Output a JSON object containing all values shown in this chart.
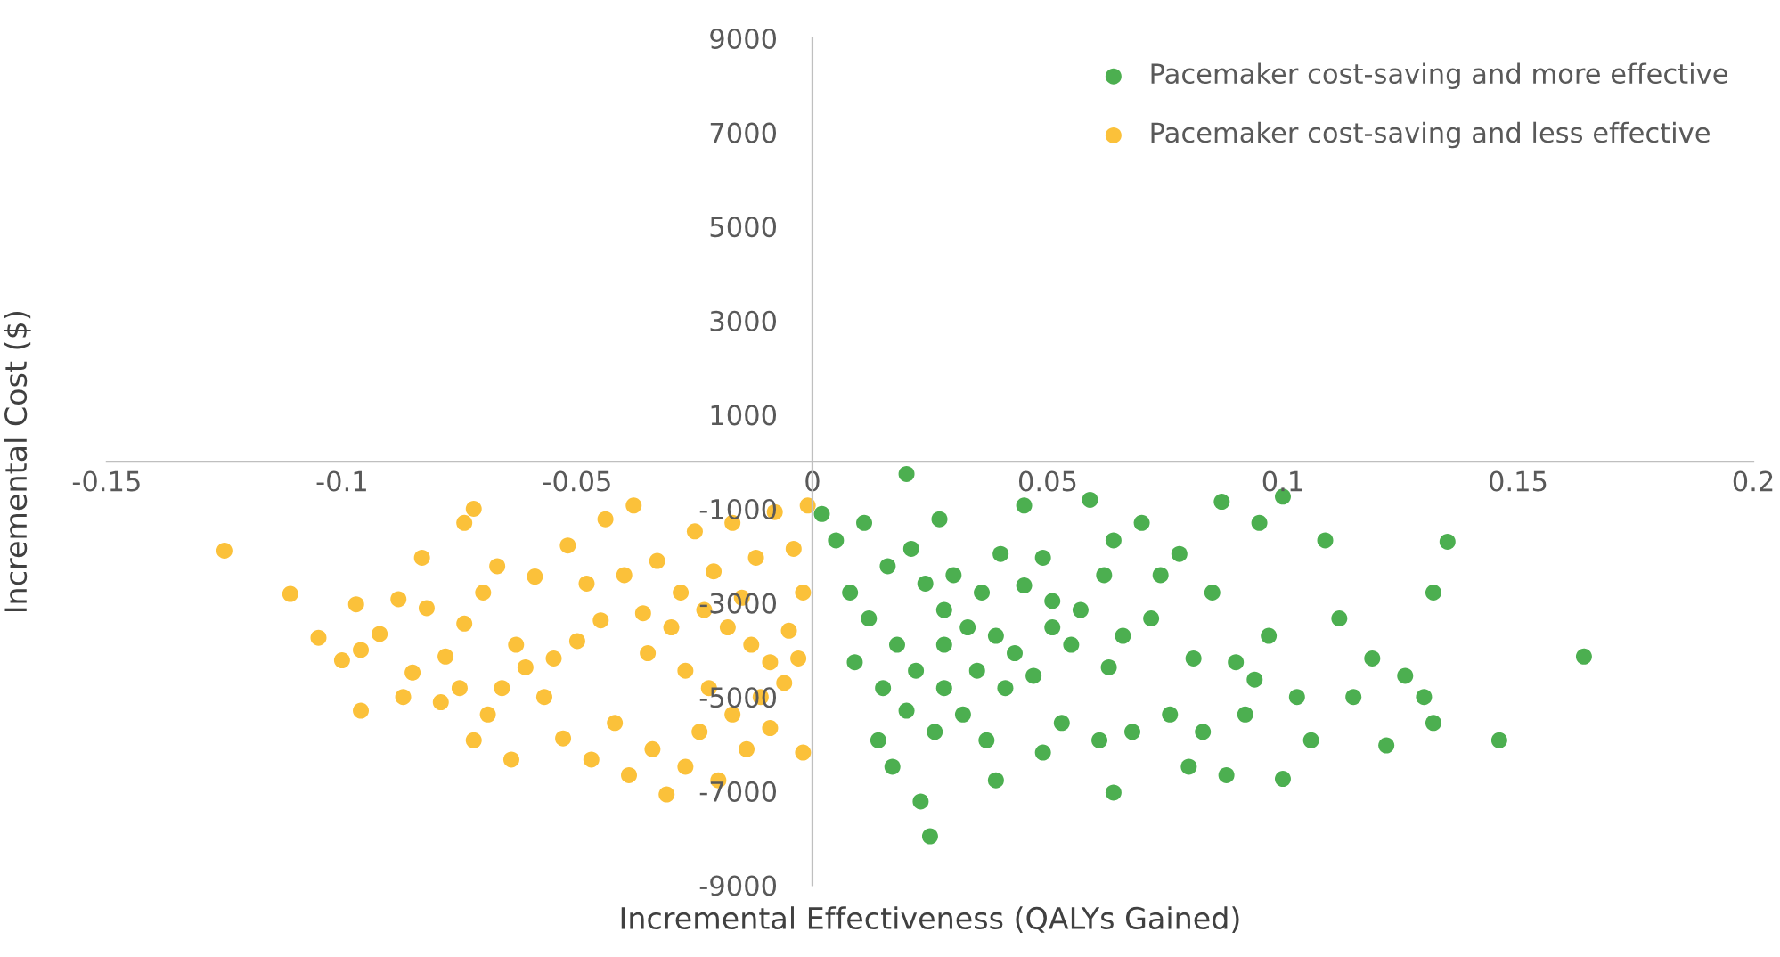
{
  "chart_data": {
    "type": "scatter",
    "xlabel": "Incremental Effectiveness (QALYs Gained)",
    "ylabel": "Incremental Cost ($)",
    "xlim": [
      -0.15,
      0.2
    ],
    "xticks": [
      -0.15,
      -0.1,
      -0.05,
      0,
      0.05,
      0.1,
      0.15,
      0.2
    ],
    "ylim": [
      -9000,
      9000
    ],
    "yticks": [
      -9000,
      -7000,
      -5000,
      -3000,
      -1000,
      1000,
      3000,
      5000,
      7000,
      9000
    ],
    "grid": false,
    "legend": "top right",
    "marker": "circle",
    "series": [
      {
        "name": "Pacemaker cost-saving and more effective",
        "color": "#4caf50",
        "x": [
          0.02,
          0.002,
          0.005,
          0.008,
          0.009,
          0.011,
          0.012,
          0.014,
          0.015,
          0.016,
          0.017,
          0.018,
          0.02,
          0.021,
          0.022,
          0.023,
          0.024,
          0.026,
          0.027,
          0.028,
          0.028,
          0.025,
          0.03,
          0.032,
          0.033,
          0.035,
          0.036,
          0.037,
          0.039,
          0.04,
          0.041,
          0.043,
          0.045,
          0.045,
          0.047,
          0.049,
          0.049,
          0.051,
          0.053,
          0.055,
          0.057,
          0.059,
          0.061,
          0.063,
          0.064,
          0.064,
          0.066,
          0.068,
          0.07,
          0.072,
          0.074,
          0.076,
          0.078,
          0.08,
          0.081,
          0.083,
          0.085,
          0.087,
          0.088,
          0.09,
          0.092,
          0.094,
          0.095,
          0.097,
          0.1,
          0.1,
          0.103,
          0.106,
          0.109,
          0.112,
          0.115,
          0.119,
          0.122,
          0.126,
          0.13,
          0.132,
          0.135,
          0.132,
          0.146,
          0.164,
          0.062,
          0.051,
          0.039,
          0.028
        ],
        "values": [
          -260,
          -1110,
          -1670,
          -2780,
          -4260,
          -1300,
          -3330,
          -5920,
          -4810,
          -2220,
          -6480,
          -3890,
          -5290,
          -1850,
          -4440,
          -7220,
          -2590,
          -5740,
          -1220,
          -3150,
          -4810,
          -7960,
          -2410,
          -5370,
          -3520,
          -4440,
          -2780,
          -5920,
          -6770,
          -1960,
          -4810,
          -4070,
          -2630,
          -930,
          -4550,
          -6180,
          -2040,
          -2960,
          -5550,
          -3890,
          -3150,
          -810,
          -5920,
          -4370,
          -7030,
          -1670,
          -3700,
          -5740,
          -1300,
          -3330,
          -2410,
          -5370,
          -1960,
          -6480,
          -4180,
          -5740,
          -2780,
          -850,
          -6660,
          -4260,
          -5370,
          -4630,
          -1300,
          -3700,
          -6740,
          -740,
          -5000,
          -5920,
          -1670,
          -3330,
          -5000,
          -4180,
          -6030,
          -4550,
          -5000,
          -2780,
          -1700,
          -5550,
          -5920,
          -4140,
          -2410,
          -3520,
          -3700,
          -3890
        ]
      },
      {
        "name": "Pacemaker cost-saving and less effective",
        "color": "#fbc13a",
        "x": [
          -0.125,
          -0.111,
          -0.105,
          -0.1,
          -0.097,
          -0.096,
          -0.096,
          -0.092,
          -0.088,
          -0.087,
          -0.085,
          -0.083,
          -0.082,
          -0.079,
          -0.078,
          -0.075,
          -0.074,
          -0.074,
          -0.072,
          -0.072,
          -0.07,
          -0.069,
          -0.067,
          -0.066,
          -0.064,
          -0.063,
          -0.061,
          -0.059,
          -0.057,
          -0.055,
          -0.053,
          -0.052,
          -0.05,
          -0.048,
          -0.047,
          -0.045,
          -0.044,
          -0.042,
          -0.04,
          -0.039,
          -0.038,
          -0.036,
          -0.035,
          -0.034,
          -0.033,
          -0.031,
          -0.03,
          -0.028,
          -0.027,
          -0.027,
          -0.025,
          -0.024,
          -0.023,
          -0.022,
          -0.021,
          -0.02,
          -0.018,
          -0.017,
          -0.017,
          -0.015,
          -0.014,
          -0.013,
          -0.012,
          -0.011,
          -0.009,
          -0.009,
          -0.008,
          -0.006,
          -0.005,
          -0.004,
          -0.003,
          -0.002,
          -0.001,
          -0.002
        ],
        "values": [
          -1890,
          -2810,
          -3740,
          -4220,
          -3030,
          -4000,
          -5290,
          -3660,
          -2920,
          -5000,
          -4480,
          -2040,
          -3110,
          -5110,
          -4140,
          -4810,
          -3440,
          -1300,
          -1000,
          -5920,
          -2780,
          -5370,
          -2220,
          -4810,
          -6330,
          -3890,
          -4370,
          -2440,
          -5000,
          -4180,
          -5880,
          -1780,
          -3810,
          -2590,
          -6330,
          -3370,
          -1220,
          -5550,
          -2410,
          -6660,
          -930,
          -3220,
          -4070,
          -6110,
          -2110,
          -7070,
          -3520,
          -2780,
          -4440,
          -6480,
          -1480,
          -5740,
          -3150,
          -4810,
          -2330,
          -6770,
          -3520,
          -5370,
          -1300,
          -2890,
          -6110,
          -3890,
          -2040,
          -5000,
          -5660,
          -4260,
          -1070,
          -4700,
          -3590,
          -1850,
          -4180,
          -2780,
          -930,
          -6180
        ]
      }
    ]
  }
}
